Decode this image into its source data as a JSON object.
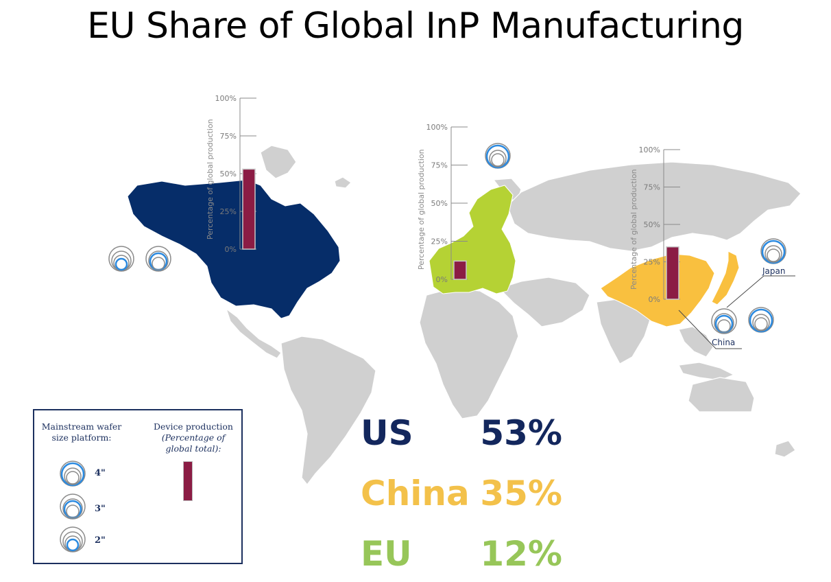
{
  "title": "EU Share of Global InP Manufacturing",
  "colors": {
    "us": "#062d69",
    "eu": "#b5d234",
    "china": "#f9c03f",
    "land": "#d0d0d0",
    "bar": "#8b1c44",
    "wafer_blue": "#2b8ae0",
    "wafer_gray": "#8a8a8a",
    "stat_us": "#13275d",
    "stat_china": "#f3c14a",
    "stat_eu": "#97c659"
  },
  "axis_title": "Percentage of global production",
  "ticks": [
    "0%",
    "25%",
    "50%",
    "75%",
    "100%"
  ],
  "regions": [
    {
      "name": "US",
      "share": 53,
      "wafer_sizes": [
        "2\"",
        "3\""
      ],
      "label": ""
    },
    {
      "name": "EU",
      "share": 12,
      "wafer_sizes": [
        "4\""
      ],
      "label": ""
    },
    {
      "name": "China",
      "share": 35,
      "wafer_sizes": [
        "3\""
      ],
      "label": "China"
    },
    {
      "name": "Japan",
      "share": null,
      "wafer_sizes": [
        "4\"",
        "4\""
      ],
      "label": "Japan"
    }
  ],
  "legend": {
    "wafer_heading": "Mainstream wafer size platform:",
    "device_heading": "Device production",
    "device_subheading": "(Percentage of global total):",
    "sizes": [
      "4\"",
      "3\"",
      "2\""
    ]
  },
  "stats": [
    {
      "name": "US",
      "value": "53%",
      "color": "#13275d"
    },
    {
      "name": "China",
      "value": "35%",
      "color": "#f3c14a"
    },
    {
      "name": "EU",
      "value": "12%",
      "color": "#97c659"
    }
  ]
}
